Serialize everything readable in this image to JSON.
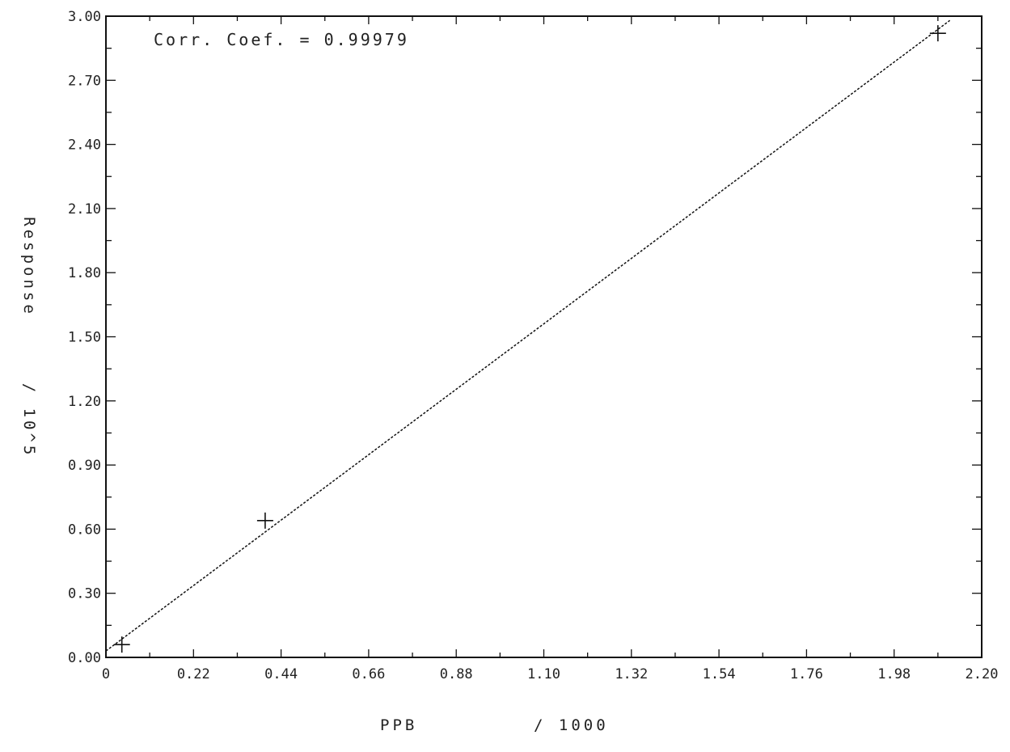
{
  "chart_data": {
    "type": "scatter",
    "title": "",
    "annotation": "Corr. Coef. = 0.99979",
    "xlabel": "PPB",
    "xlabel_scale": "/ 1000",
    "ylabel": "Response",
    "ylabel_scale": "/ 10^5",
    "xlim": [
      0,
      2.2
    ],
    "ylim": [
      0,
      3.0
    ],
    "x_ticks": [
      "0",
      "0.22",
      "0.44",
      "0.66",
      "0.88",
      "1.10",
      "1.32",
      "1.54",
      "1.76",
      "1.98",
      "2.20"
    ],
    "y_ticks": [
      "0.00",
      "0.30",
      "0.60",
      "0.90",
      "1.20",
      "1.50",
      "1.80",
      "2.10",
      "2.40",
      "2.70",
      "3.00"
    ],
    "grid": false,
    "series": [
      {
        "marker": "+",
        "x": [
          0.04,
          0.4,
          2.09
        ],
        "y": [
          0.06,
          0.64,
          2.92
        ]
      }
    ],
    "fit_line": {
      "style": "dotted",
      "x": [
        0,
        2.12
      ],
      "y": [
        0.03,
        2.98
      ]
    }
  }
}
